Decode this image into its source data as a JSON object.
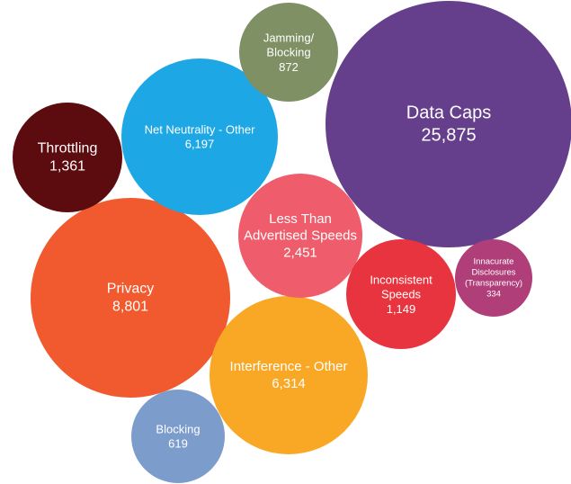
{
  "chart_data": {
    "type": "bubble",
    "title": "",
    "series": [
      {
        "name": "",
        "items": [
          {
            "label_lines": [
              "Data Caps"
            ],
            "value_text": "25,875",
            "value": 25875,
            "color": "#663f8c"
          },
          {
            "label_lines": [
              "Privacy"
            ],
            "value_text": "8,801",
            "value": 8801,
            "color": "#f15a2e"
          },
          {
            "label_lines": [
              "Interference - Other"
            ],
            "value_text": "6,314",
            "value": 6314,
            "color": "#f9a825"
          },
          {
            "label_lines": [
              "Net Neutrality - Other"
            ],
            "value_text": "6,197",
            "value": 6197,
            "color": "#1da7e5"
          },
          {
            "label_lines": [
              "Less Than",
              "Advertised Speeds"
            ],
            "value_text": "2,451",
            "value": 2451,
            "color": "#ef5c6b"
          },
          {
            "label_lines": [
              "Throttling"
            ],
            "value_text": "1,361",
            "value": 1361,
            "color": "#5c0b0e"
          },
          {
            "label_lines": [
              "Inconsistent",
              "Speeds"
            ],
            "value_text": "1,149",
            "value": 1149,
            "color": "#e8343e"
          },
          {
            "label_lines": [
              "Jamming/",
              "Blocking"
            ],
            "value_text": "872",
            "value": 872,
            "color": "#7e9064"
          },
          {
            "label_lines": [
              "Blocking"
            ],
            "value_text": "619",
            "value": 619,
            "color": "#7c9ccc"
          },
          {
            "label_lines": [
              "Innacurate",
              "Disclosures",
              "(Transparency)"
            ],
            "value_text": "334",
            "value": 334,
            "color": "#b03e79"
          }
        ]
      }
    ]
  }
}
